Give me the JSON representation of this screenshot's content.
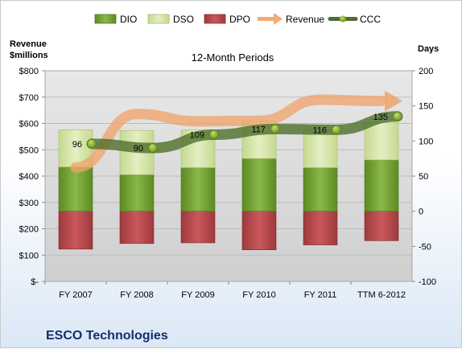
{
  "chart_data": {
    "type": "bar",
    "title": "12-Month Periods",
    "company": "ESCO Technologies",
    "left_axis": {
      "label_line1": "Revenue",
      "label_line2": "$millions",
      "min": 0,
      "max": 800,
      "ticks": [
        "$-",
        "$100",
        "$200",
        "$300",
        "$400",
        "$500",
        "$600",
        "$700",
        "$800"
      ]
    },
    "right_axis": {
      "label": "Days",
      "min": -100,
      "max": 200,
      "ticks": [
        "-100",
        "-50",
        "0",
        "50",
        "100",
        "150",
        "200"
      ]
    },
    "categories": [
      "FY 2007",
      "FY 2008",
      "FY 2009",
      "FY 2010",
      "FY 2011",
      "TTM 6-2012"
    ],
    "legend_position": "top",
    "series": [
      {
        "name": "DIO",
        "axis": "right",
        "color": "#6e9a2e",
        "values": [
          63,
          52,
          62,
          75,
          62,
          73
        ]
      },
      {
        "name": "DSO",
        "axis": "right",
        "color": "#d2e3a4",
        "values": [
          53,
          63,
          54,
          53,
          54,
          53
        ]
      },
      {
        "name": "DPO",
        "axis": "right",
        "color": "#b8484c",
        "values": [
          -54,
          -46,
          -45,
          -55,
          -48,
          -42
        ]
      },
      {
        "name": "Revenue",
        "axis": "left",
        "color": "#f0a26a",
        "values": [
          433,
          636,
          608,
          610,
          690,
          685
        ]
      },
      {
        "name": "CCC",
        "axis": "right",
        "color": "#4f6f2c",
        "values": [
          96,
          90,
          109,
          117,
          116,
          135
        ]
      }
    ],
    "ccc_labels": [
      "96",
      "90",
      "109",
      "117",
      "116",
      "135"
    ],
    "grid": true
  }
}
